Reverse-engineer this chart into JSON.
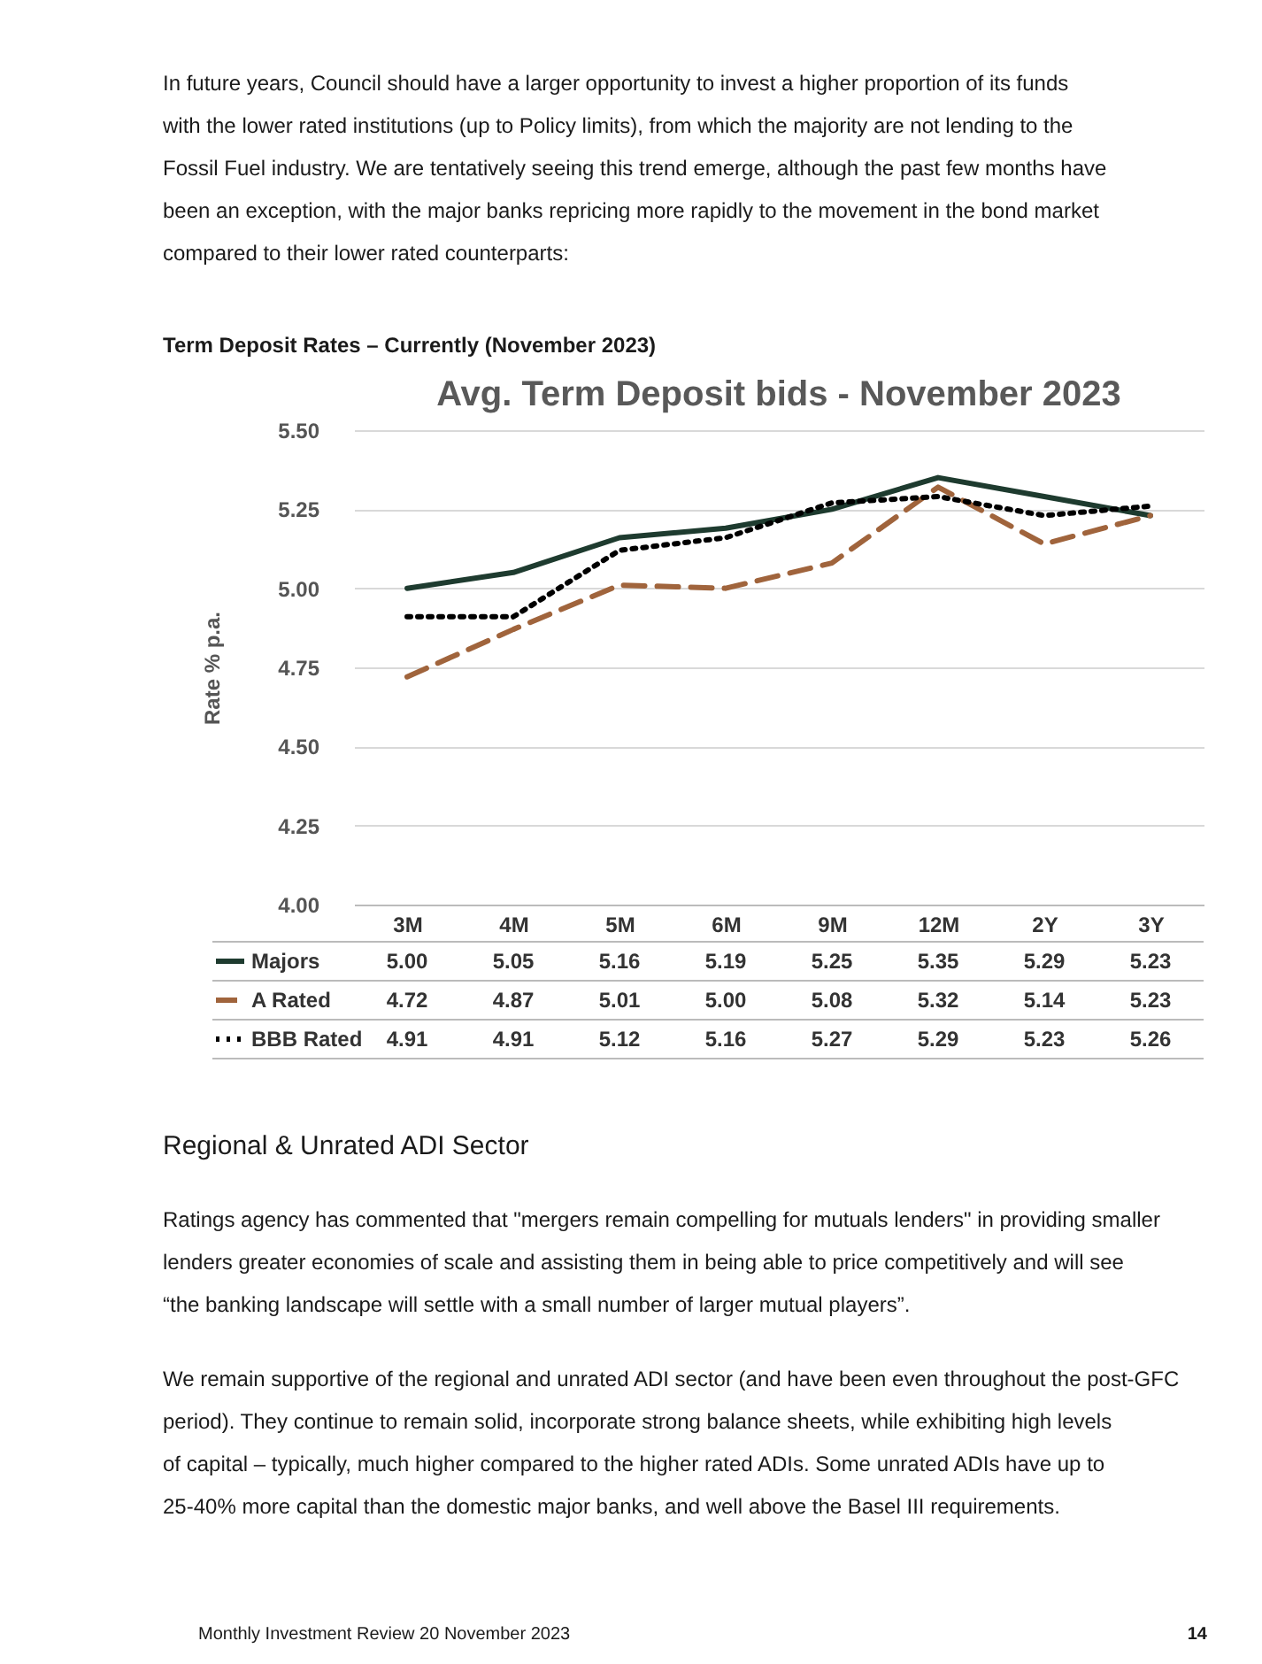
{
  "chart_data": {
    "type": "line",
    "title": "Avg. Term Deposit bids - November 2023",
    "ylabel": "Rate % p.a.",
    "categories": [
      "3M",
      "4M",
      "5M",
      "6M",
      "9M",
      "12M",
      "2Y",
      "3Y"
    ],
    "series": [
      {
        "name": "Majors",
        "color": "#1e3b2f",
        "line_style": "solid",
        "values": [
          5.0,
          5.05,
          5.16,
          5.19,
          5.25,
          5.35,
          5.29,
          5.23
        ],
        "value_labels": [
          "5.00",
          "5.05",
          "5.16",
          "5.19",
          "5.25",
          "5.35",
          "5.29",
          "5.23"
        ]
      },
      {
        "name": "A Rated",
        "color": "#a0643c",
        "line_style": "dashed",
        "values": [
          4.72,
          4.87,
          5.01,
          5.0,
          5.08,
          5.32,
          5.14,
          5.23
        ],
        "value_labels": [
          "4.72",
          "4.87",
          "5.01",
          "5.00",
          "5.08",
          "5.32",
          "5.14",
          "5.23"
        ]
      },
      {
        "name": "BBB Rated",
        "color": "#000000",
        "line_style": "dotted",
        "values": [
          4.91,
          4.91,
          5.12,
          5.16,
          5.27,
          5.29,
          5.23,
          5.26
        ],
        "value_labels": [
          "4.91",
          "4.91",
          "5.12",
          "5.16",
          "5.27",
          "5.29",
          "5.23",
          "5.26"
        ]
      }
    ],
    "ylim": [
      4.0,
      5.5
    ],
    "yticks": [
      {
        "value": 4.0,
        "label": "4.00"
      },
      {
        "value": 4.25,
        "label": "4.25"
      },
      {
        "value": 4.5,
        "label": "4.50"
      },
      {
        "value": 4.75,
        "label": "4.75"
      },
      {
        "value": 5.0,
        "label": "5.00"
      },
      {
        "value": 5.25,
        "label": "5.25"
      },
      {
        "value": 5.5,
        "label": "5.50"
      }
    ],
    "grid": "y",
    "legend": "bottom",
    "annotations": [
      "In future years, Council should have a larger opportunity to invest a higher proportion of its funds with the lower rated institutions (up to Policy limits), from which the majority are not lending to the Fossil Fuel industry. We are tentatively seeing this trend emerge, although the past few months have been an exception, with the major banks repricing more rapidly to the movement in the bond market compared to their lower rated counterparts:",
      "Term Deposit Rates – Currently (November 2023)",
      "Regional & Unrated ADI Sector",
      "Ratings agency has commented that \"mergers remain compelling for mutuals lenders\" in providing smaller lenders greater economies of scale and assisting them in being able to price competitively and will see “the banking landscape will settle with a small number of larger mutual players”.",
      "We remain supportive of the regional and unrated ADI sector (and have been even throughout the post-GFC period). They continue to remain solid, incorporate strong balance sheets, while exhibiting high levels of capital – typically, much higher compared to the higher rated ADIs. Some unrated ADIs have up to 25-40% more capital than the domestic major banks, and well above the Basel III requirements.",
      "Monthly Investment Review 20 November 2023",
      "14"
    ]
  }
}
